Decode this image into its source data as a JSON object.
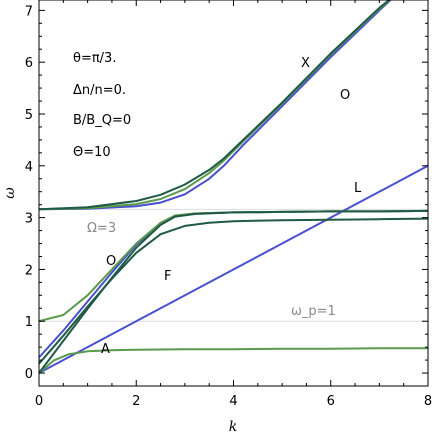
{
  "chart_data": {
    "type": "line",
    "title": "",
    "xlabel": "k",
    "ylabel": "ω",
    "xlim": [
      0,
      8
    ],
    "ylim": [
      -0.25,
      7.2
    ],
    "xticks": [
      "0",
      "2",
      "4",
      "6",
      "8"
    ],
    "yticks": [
      "0",
      "1",
      "2",
      "3",
      "4",
      "5",
      "6",
      "7"
    ],
    "grid": false,
    "colors": {
      "blue": "#4a4fd1",
      "green": "#5a9a4a",
      "dark_green": "#1f5a46",
      "ref_line": "#dddddd"
    },
    "reference_lines": [
      {
        "name": "Omega",
        "y": 3.16
      },
      {
        "name": "omega_p",
        "y": 1
      }
    ],
    "annotations": {
      "theta": "θ=π/3.",
      "delta_n": "Δn/n=0.",
      "field_ratio": "B/B_Q=0",
      "big_theta": "Θ=10",
      "omega_cyclotron": "Ω=3",
      "omega_plasma": "ω_p=1",
      "mode_X": "X",
      "mode_O_upper": "O",
      "mode_L": "L",
      "mode_O_lower": "O",
      "mode_F": "F",
      "mode_A": "A"
    },
    "series": [
      {
        "color": "blue",
        "x": [
          0,
          8
        ],
        "y": [
          0,
          4
        ]
      },
      {
        "color": "blue",
        "x": [
          0,
          0.5,
          1,
          1.5,
          2,
          2.5,
          2.8,
          3.2,
          4,
          5,
          6,
          7,
          8
        ],
        "y": [
          0.3,
          0.82,
          1.38,
          1.94,
          2.48,
          2.88,
          3.02,
          3.08,
          3.1,
          3.11,
          3.12,
          3.12,
          3.13
        ]
      },
      {
        "color": "blue",
        "x": [
          0,
          1,
          2,
          2.5,
          3,
          3.5,
          3.8,
          4.2,
          5,
          6,
          7,
          7.4
        ],
        "y": [
          3.16,
          3.17,
          3.22,
          3.29,
          3.45,
          3.75,
          4.0,
          4.4,
          5.15,
          6.1,
          7.0,
          7.35
        ]
      },
      {
        "color": "green",
        "x": [
          0,
          0.5,
          1,
          1.5,
          2,
          2.5,
          2.8,
          3.2,
          4,
          5,
          6,
          7,
          8
        ],
        "y": [
          1.0,
          1.12,
          1.5,
          2.0,
          2.5,
          2.9,
          3.04,
          3.08,
          3.1,
          3.11,
          3.12,
          3.12,
          3.13
        ]
      },
      {
        "color": "green",
        "x": [
          0,
          0.3,
          0.6,
          1,
          1.5,
          2,
          3,
          4,
          5,
          6,
          7,
          8
        ],
        "y": [
          0,
          0.24,
          0.36,
          0.42,
          0.44,
          0.45,
          0.46,
          0.46,
          0.47,
          0.47,
          0.48,
          0.48
        ]
      },
      {
        "color": "green",
        "x": [
          0,
          1,
          2,
          2.5,
          3,
          3.5,
          3.8,
          4.2,
          5,
          6,
          7,
          7.4
        ],
        "y": [
          3.16,
          3.18,
          3.26,
          3.36,
          3.55,
          3.86,
          4.1,
          4.47,
          5.2,
          6.15,
          7.03,
          7.35
        ]
      },
      {
        "color": "dark_green",
        "x": [
          0,
          1,
          2,
          2.5,
          3,
          3.5,
          3.8,
          4.2,
          5,
          6,
          7,
          7.4
        ],
        "y": [
          3.16,
          3.2,
          3.32,
          3.44,
          3.64,
          3.92,
          4.14,
          4.5,
          5.22,
          6.17,
          7.05,
          7.35
        ]
      },
      {
        "color": "dark_green",
        "x": [
          0,
          0.5,
          1,
          1.5,
          2,
          2.5,
          3,
          3.5,
          4,
          5,
          6,
          7,
          8
        ],
        "y": [
          0.18,
          0.72,
          1.28,
          1.82,
          2.32,
          2.68,
          2.84,
          2.9,
          2.93,
          2.95,
          2.96,
          2.97,
          2.98
        ]
      },
      {
        "color": "dark_green",
        "x": [
          0,
          0.5,
          1,
          1.5,
          2,
          2.5,
          2.8,
          3.2,
          4,
          5,
          6,
          7,
          8
        ],
        "y": [
          0,
          0.62,
          1.24,
          1.84,
          2.42,
          2.86,
          3.02,
          3.07,
          3.1,
          3.11,
          3.12,
          3.12,
          3.13
        ]
      }
    ]
  }
}
